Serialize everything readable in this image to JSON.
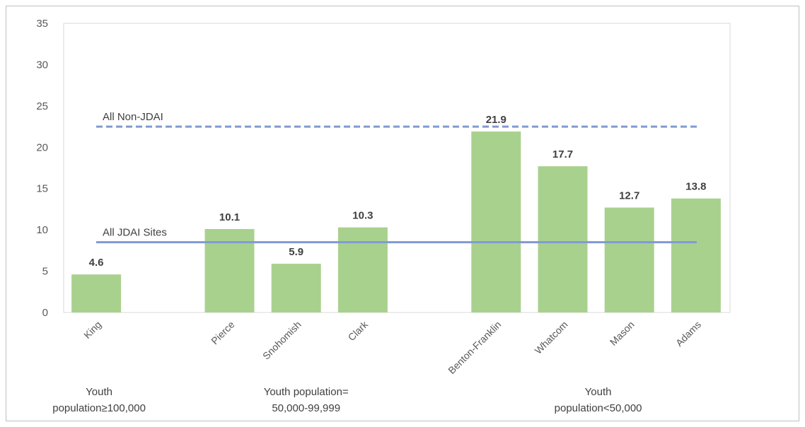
{
  "chart_data": {
    "type": "bar",
    "categories": [
      "King",
      "Pierce",
      "Snohomish",
      "Clark",
      "Benton-Franklin",
      "Whatcom",
      "Mason",
      "Adams"
    ],
    "values": [
      4.6,
      10.1,
      5.9,
      10.3,
      21.9,
      17.7,
      12.7,
      13.8
    ],
    "data_labels": [
      "4.6",
      "10.1",
      "5.9",
      "10.3",
      "21.9",
      "17.7",
      "12.7",
      "13.8"
    ],
    "ylim": [
      0,
      35
    ],
    "yticks": [
      "0",
      "5",
      "10",
      "15",
      "20",
      "25",
      "30",
      "35"
    ],
    "bar_color": "#a9d18e",
    "grid": false,
    "reference_lines": [
      {
        "label": "All JDAI Sites",
        "value": 8.5,
        "style": "solid",
        "color": "#7f9ad3"
      },
      {
        "label": "All Non-JDAI",
        "value": 22.5,
        "style": "dashed",
        "color": "#7f9ad3"
      }
    ],
    "groups": [
      {
        "lines": [
          "Youth",
          "population≥100,000"
        ]
      },
      {
        "lines": [
          "Youth population=",
          "50,000-99,999"
        ]
      },
      {
        "lines": [
          "Youth",
          "population<50,000"
        ]
      }
    ]
  }
}
